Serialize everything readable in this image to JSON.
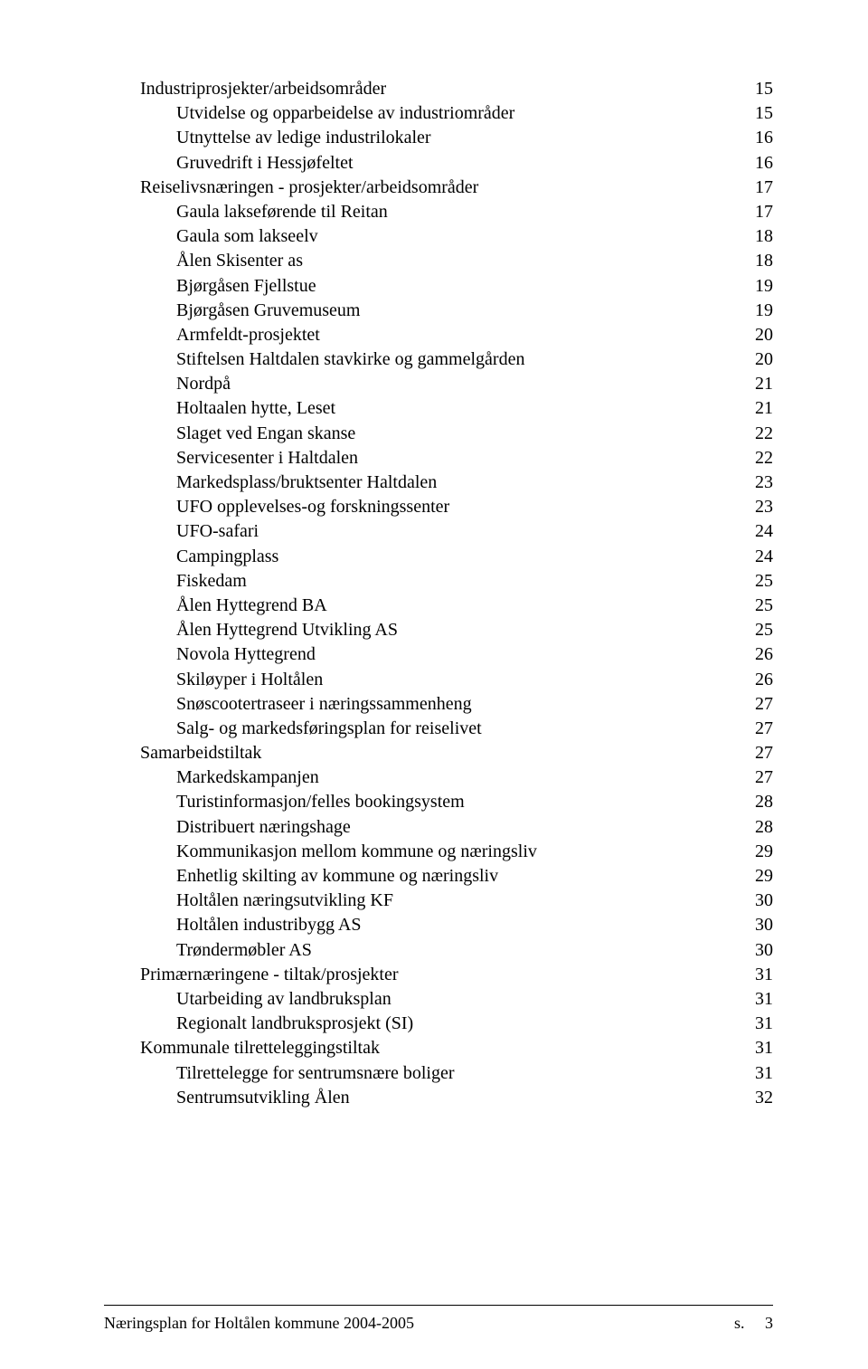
{
  "fontFamily": "Times New Roman",
  "textColor": "#000000",
  "background": "#ffffff",
  "toc": [
    {
      "indent": 1,
      "label": "Industriprosjekter/arbeidsområder",
      "page": "15"
    },
    {
      "indent": 2,
      "label": "Utvidelse og opparbeidelse av industriområder",
      "page": "15"
    },
    {
      "indent": 2,
      "label": "Utnyttelse av ledige industrilokaler",
      "page": "16"
    },
    {
      "indent": 2,
      "label": "Gruvedrift i Hessjøfeltet",
      "page": "16"
    },
    {
      "indent": 1,
      "label": "Reiselivsnæringen - prosjekter/arbeidsområder",
      "page": "17"
    },
    {
      "indent": 2,
      "label": "Gaula lakseførende til Reitan",
      "page": "17"
    },
    {
      "indent": 2,
      "label": "Gaula som lakseelv",
      "page": "18"
    },
    {
      "indent": 2,
      "label": "Ålen Skisenter as",
      "page": "18"
    },
    {
      "indent": 2,
      "label": "Bjørgåsen Fjellstue",
      "page": "19"
    },
    {
      "indent": 2,
      "label": "Bjørgåsen Gruvemuseum",
      "page": "19"
    },
    {
      "indent": 2,
      "label": "Armfeldt-prosjektet",
      "page": "20"
    },
    {
      "indent": 2,
      "label": "Stiftelsen Haltdalen stavkirke og gammelgården",
      "page": "20"
    },
    {
      "indent": 2,
      "label": "Nordpå",
      "page": "21"
    },
    {
      "indent": 2,
      "label": "Holtaalen hytte, Leset",
      "page": "21"
    },
    {
      "indent": 2,
      "label": "Slaget ved Engan skanse",
      "page": "22"
    },
    {
      "indent": 2,
      "label": "Servicesenter i Haltdalen",
      "page": "22"
    },
    {
      "indent": 2,
      "label": "Markedsplass/bruktsenter Haltdalen",
      "page": "23"
    },
    {
      "indent": 2,
      "label": "UFO opplevelses-og forskningssenter",
      "page": "23"
    },
    {
      "indent": 2,
      "label": "UFO-safari",
      "page": "24"
    },
    {
      "indent": 2,
      "label": "Campingplass",
      "page": "24"
    },
    {
      "indent": 2,
      "label": "Fiskedam",
      "page": "25"
    },
    {
      "indent": 2,
      "label": "Ålen Hyttegrend BA",
      "page": "25"
    },
    {
      "indent": 2,
      "label": "Ålen Hyttegrend Utvikling AS",
      "page": "25"
    },
    {
      "indent": 2,
      "label": "Novola Hyttegrend",
      "page": "26"
    },
    {
      "indent": 2,
      "label": "Skiløyper i Holtålen",
      "page": "26"
    },
    {
      "indent": 2,
      "label": "Snøscootertraseer i næringssammenheng",
      "page": "27"
    },
    {
      "indent": 2,
      "label": "Salg- og markedsføringsplan for reiselivet",
      "page": "27"
    },
    {
      "indent": 1,
      "label": "Samarbeidstiltak",
      "page": "27"
    },
    {
      "indent": 2,
      "label": "Markedskampanjen",
      "page": "27"
    },
    {
      "indent": 2,
      "label": "Turistinformasjon/felles bookingsystem",
      "page": "28"
    },
    {
      "indent": 2,
      "label": "Distribuert næringshage",
      "page": "28"
    },
    {
      "indent": 2,
      "label": "Kommunikasjon mellom kommune og næringsliv",
      "page": "29"
    },
    {
      "indent": 2,
      "label": "Enhetlig skilting av kommune og næringsliv",
      "page": "29"
    },
    {
      "indent": 2,
      "label": "Holtålen næringsutvikling KF",
      "page": "30"
    },
    {
      "indent": 2,
      "label": "Holtålen industribygg AS",
      "page": "30"
    },
    {
      "indent": 2,
      "label": "Trøndermøbler AS",
      "page": "30"
    },
    {
      "indent": 1,
      "label": "Primærnæringene - tiltak/prosjekter",
      "page": "31"
    },
    {
      "indent": 2,
      "label": "Utarbeiding av landbruksplan",
      "page": "31"
    },
    {
      "indent": 2,
      "label": "Regionalt landbruksprosjekt (SI)",
      "page": "31"
    },
    {
      "indent": 1,
      "label": "Kommunale tilretteleggingstiltak",
      "page": "31"
    },
    {
      "indent": 2,
      "label": "Tilrettelegge for sentrumsnære boliger",
      "page": "31"
    },
    {
      "indent": 2,
      "label": "Sentrumsutvikling Ålen",
      "page": "32"
    }
  ],
  "footer": {
    "left": "Næringsplan for Holtålen kommune 2004-2005",
    "right_label": "s.",
    "right_page": "3"
  }
}
